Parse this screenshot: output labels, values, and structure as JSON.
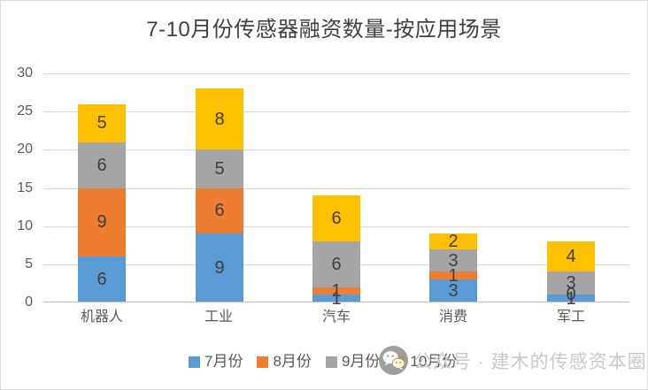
{
  "page": {
    "title": "7-10月份传感器融资数量-按应用场景"
  },
  "watermark": {
    "icon": "wechat-icon",
    "text": "公众号 · 建木的传感资本圈"
  },
  "chart_data": {
    "type": "bar",
    "stacked": true,
    "title": "7-10月份传感器融资数量-按应用场景",
    "categories": [
      "机器人",
      "工业",
      "汽车",
      "消费",
      "军工"
    ],
    "series": [
      {
        "name": "7月份",
        "color": "#5B9BD5",
        "values": [
          6,
          9,
          1,
          3,
          1
        ]
      },
      {
        "name": "8月份",
        "color": "#ED7D31",
        "values": [
          9,
          6,
          1,
          1,
          0
        ]
      },
      {
        "name": "9月份",
        "color": "#A5A5A5",
        "values": [
          6,
          5,
          6,
          3,
          3
        ]
      },
      {
        "name": "10月份",
        "color": "#FFC000",
        "values": [
          5,
          8,
          6,
          2,
          4
        ]
      }
    ],
    "totals": [
      26,
      28,
      14,
      9,
      8
    ],
    "xlabel": "",
    "ylabel": "",
    "ylim": [
      0,
      30
    ],
    "yticks": [
      0,
      5,
      10,
      15,
      20,
      25,
      30
    ],
    "grid": true,
    "data_labels": true,
    "legend_position": "bottom",
    "colors": {
      "grid": "#D9D9D9",
      "axis": "#BFBFBF",
      "title_text": "#404040",
      "tick_text": "#595959",
      "data_label_text": "#404040",
      "watermark_text": "#C9C9C9"
    }
  }
}
